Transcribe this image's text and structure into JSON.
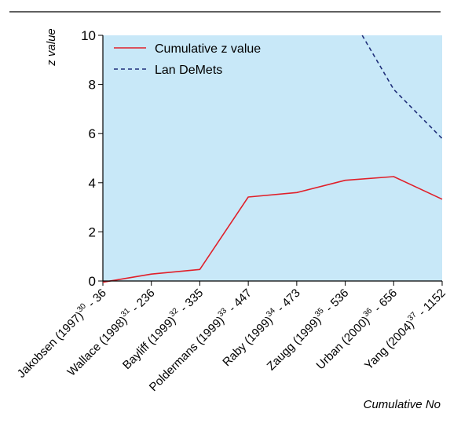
{
  "chart_data": {
    "type": "line",
    "ylabel": "z value",
    "xlabel": "Cumulative No",
    "ylim": [
      0,
      10
    ],
    "yticks": [
      "0",
      "2",
      "4",
      "6",
      "8",
      "10"
    ],
    "categories": [
      {
        "name": "Jakobsen (1997)",
        "ref": "30",
        "n": " - 36"
      },
      {
        "name": "Wallace (1998)",
        "ref": "31",
        "n": " - 236"
      },
      {
        "name": "Bayliff (1999)",
        "ref": "32",
        "n": " - 335"
      },
      {
        "name": "Poldermans (1999)",
        "ref": "33",
        "n": " - 447"
      },
      {
        "name": "Raby (1999)",
        "ref": "34",
        "n": " - 473"
      },
      {
        "name": "Zaugg (1999)",
        "ref": "35",
        "n": " - 536"
      },
      {
        "name": "Urban (2000)",
        "ref": "36",
        "n": " - 656"
      },
      {
        "name": "Yang (2004)",
        "ref": "37",
        "n": " - 1152"
      }
    ],
    "series": [
      {
        "name": "Cumulative z value",
        "style": "solid",
        "color": "#e0202a",
        "values": [
          -0.05,
          0.28,
          0.47,
          3.42,
          3.6,
          4.1,
          4.25,
          3.33
        ]
      },
      {
        "name": "Lan DeMets",
        "style": "dashed",
        "color": "#1f2f7a",
        "x": [
          5.35,
          6,
          7
        ],
        "values": [
          10.0,
          7.8,
          5.8
        ]
      }
    ],
    "legend_position": "top-left",
    "background_color": "#c8e8f8",
    "grid": false
  }
}
